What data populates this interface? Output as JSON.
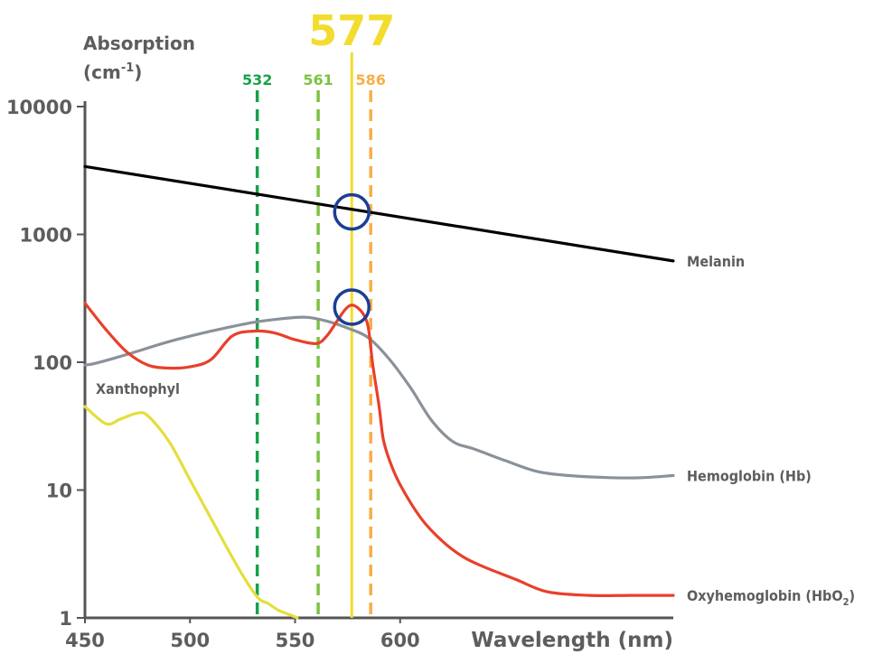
{
  "chart_data": {
    "type": "line",
    "ylabel_line1": "Absorption",
    "ylabel_line2": "(cm",
    "ylabel_sup": "-1",
    "ylabel_close": ")",
    "xlabel": "Wavelength (nm)",
    "xscale": "linear",
    "yscale": "log",
    "xlim": [
      450,
      730
    ],
    "ylim": [
      1,
      10000
    ],
    "x_ticks": [
      450,
      500,
      550,
      600
    ],
    "x_tick_labels": [
      "450",
      "500",
      "550",
      "600"
    ],
    "y_ticks": [
      1,
      10,
      100,
      1000,
      10000
    ],
    "y_tick_labels": [
      "1",
      "10",
      "100",
      "1000",
      "10000"
    ],
    "grid": false,
    "legend": "none",
    "laser_lines": [
      {
        "wavelength": 532,
        "label": "532",
        "color": "#17a14a",
        "style": "dashed"
      },
      {
        "wavelength": 561,
        "label": "561",
        "color": "#7dc242",
        "style": "dashed"
      },
      {
        "wavelength": 577,
        "label": "577",
        "color": "#f2dc2e",
        "style": "solid",
        "emphasis": true
      },
      {
        "wavelength": 586,
        "label": "586",
        "color": "#f9ad48",
        "style": "dashed"
      }
    ],
    "highlight_circles": [
      {
        "x": 577,
        "y": 1500,
        "color": "#1c3f94"
      },
      {
        "x": 577,
        "y": 270,
        "color": "#1c3f94"
      }
    ],
    "series": [
      {
        "name": "Melanin",
        "color": "#000000",
        "x": [
          450,
          730
        ],
        "y": [
          3400,
          620
        ]
      },
      {
        "name": "Hemoglobin (Hb)",
        "color": "#8a9199",
        "x": [
          450,
          455,
          470,
          490,
          510,
          530,
          545,
          555,
          565,
          575,
          585,
          595,
          605,
          615,
          625,
          635,
          650,
          665,
          680,
          700,
          715,
          730
        ],
        "y": [
          95,
          98,
          115,
          145,
          175,
          205,
          220,
          225,
          210,
          185,
          155,
          105,
          63,
          35,
          24,
          21,
          17,
          14,
          13,
          12.5,
          12.5,
          13
        ]
      },
      {
        "name": "Oxyhemoglobin (HbO",
        "name_sub": "2",
        "name_close": ")",
        "color": "#e8402a",
        "x": [
          450,
          460,
          470,
          480,
          490,
          500,
          510,
          520,
          530,
          540,
          550,
          560,
          565,
          570,
          574,
          577,
          580,
          583,
          585,
          587,
          590,
          592,
          595,
          600,
          610,
          620,
          630,
          640,
          655,
          670,
          690,
          710,
          730
        ],
        "y": [
          290,
          180,
          120,
          95,
          90,
          92,
          105,
          160,
          175,
          170,
          150,
          140,
          160,
          210,
          260,
          280,
          265,
          230,
          180,
          95,
          45,
          25,
          17,
          11,
          6,
          4,
          3,
          2.5,
          2,
          1.6,
          1.5,
          1.5,
          1.5
        ]
      },
      {
        "name": "Xanthophyl",
        "color": "#e5de3c",
        "x": [
          450,
          460,
          467,
          475,
          480,
          490,
          500,
          510,
          520,
          528,
          533,
          537,
          542,
          548,
          551
        ],
        "y": [
          45,
          33,
          36,
          40,
          38,
          24,
          12,
          6,
          3,
          1.8,
          1.4,
          1.3,
          1.15,
          1.05,
          1.0
        ]
      }
    ]
  }
}
